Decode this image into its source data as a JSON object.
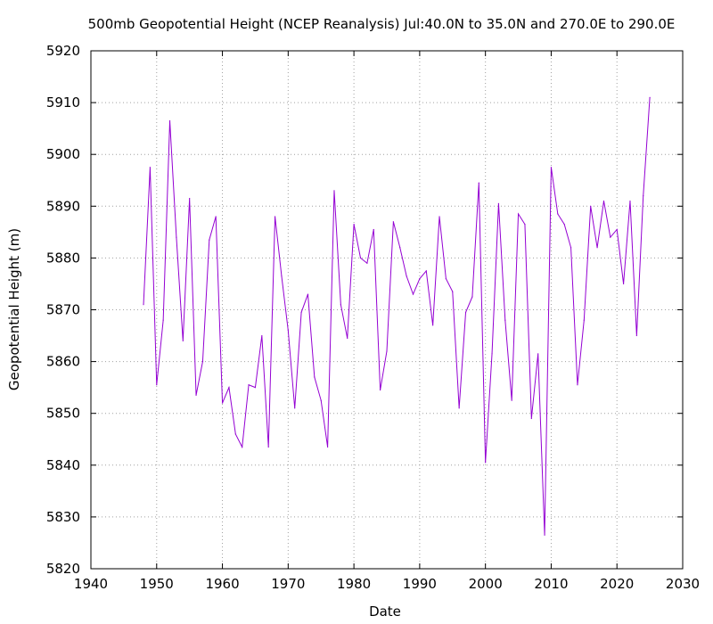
{
  "chart_data": {
    "type": "line",
    "title": "500mb Geopotential Height (NCEP Reanalysis) Jul:40.0N to 35.0N and 270.0E to 290.0E",
    "xlabel": "Date",
    "ylabel": "Geopotential Height (m)",
    "xlim": [
      1940,
      2030
    ],
    "ylim": [
      5820,
      5920
    ],
    "xticks": [
      1940,
      1950,
      1960,
      1970,
      1980,
      1990,
      2000,
      2010,
      2020,
      2030
    ],
    "yticks": [
      5820,
      5830,
      5840,
      5850,
      5860,
      5870,
      5880,
      5890,
      5900,
      5910,
      5920
    ],
    "grid": true,
    "legend": "none",
    "line_color": "#9400d3",
    "x": [
      1948,
      1949,
      1950,
      1951,
      1952,
      1953,
      1954,
      1955,
      1956,
      1957,
      1958,
      1959,
      1960,
      1961,
      1962,
      1963,
      1964,
      1965,
      1966,
      1967,
      1968,
      1969,
      1970,
      1971,
      1972,
      1973,
      1974,
      1975,
      1976,
      1977,
      1978,
      1979,
      1980,
      1981,
      1982,
      1983,
      1984,
      1985,
      1986,
      1987,
      1988,
      1989,
      1990,
      1991,
      1992,
      1993,
      1994,
      1995,
      1996,
      1997,
      1998,
      1999,
      2000,
      2001,
      2002,
      2003,
      2004,
      2005,
      2006,
      2007,
      2008,
      2009,
      2010,
      2011,
      2012,
      2013,
      2014,
      2015,
      2016,
      2017,
      2018,
      2019,
      2020,
      2021,
      2022,
      2023,
      2024,
      2025
    ],
    "y": [
      5871.0,
      5897.5,
      5855.5,
      5868.0,
      5906.5,
      5884.0,
      5864.0,
      5891.5,
      5853.5,
      5860.0,
      5883.5,
      5888.0,
      5852.0,
      5855.0,
      5846.0,
      5843.5,
      5855.5,
      5855.0,
      5865.0,
      5843.5,
      5888.0,
      5876.5,
      5866.0,
      5851.0,
      5869.5,
      5873.0,
      5857.0,
      5852.5,
      5843.5,
      5893.0,
      5871.0,
      5864.5,
      5886.5,
      5880.0,
      5879.0,
      5885.5,
      5854.5,
      5862.0,
      5887.0,
      5882.0,
      5876.5,
      5873.0,
      5876.0,
      5877.5,
      5867.0,
      5888.0,
      5876.0,
      5873.5,
      5851.0,
      5869.5,
      5872.5,
      5894.5,
      5840.5,
      5861.5,
      5890.5,
      5868.0,
      5852.5,
      5888.5,
      5886.5,
      5849.0,
      5861.5,
      5826.5,
      5897.5,
      5888.5,
      5886.5,
      5882.0,
      5855.5,
      5868.0,
      5890.0,
      5882.0,
      5891.0,
      5884.0,
      5885.5,
      5875.0,
      5891.0,
      5865.0,
      5892.0,
      5911.0
    ]
  }
}
